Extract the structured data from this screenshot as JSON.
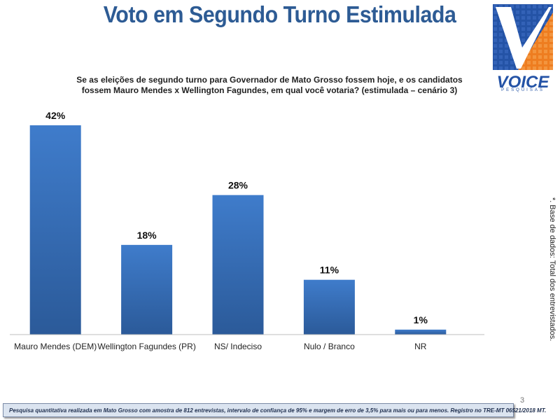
{
  "title": "Voto em Segundo Turno Estimulada",
  "logo": {
    "word": "VOICE",
    "sub": "PESQUISAS"
  },
  "question_line1": "Se as eleições de segundo turno para Governador de Mato Grosso fossem hoje, e os candidatos",
  "question_line2": "fossem Mauro Mendes x Wellington Fagundes, em qual você votaria? (estimulada – cenário 3)",
  "side_note": "*. Base de dados: Total dos entrevistados.",
  "page_number": "3",
  "footer": "Pesquisa quantitativa realizada em Mato Grosso com  amostra de 812 entrevistas, intervalo de confiança de 95% e margem de erro de 3,5% para mais ou para menos. Registro no TRE-MT  06521/2018 MT.",
  "colors": {
    "bar_top": "#3f7ccb",
    "bar_bottom": "#2b5a99",
    "title": "#2d5b94"
  },
  "chart_data": {
    "type": "bar",
    "categories": [
      "Mauro Mendes (DEM)",
      "Wellington Fagundes (PR)",
      "NS/ Indeciso",
      "Nulo / Branco",
      "NR"
    ],
    "values": [
      42,
      18,
      28,
      11,
      1
    ],
    "value_labels": [
      "42%",
      "18%",
      "28%",
      "11%",
      "1%"
    ],
    "unit": "%",
    "ylim": [
      0,
      42
    ],
    "grid": false,
    "legend": "none"
  }
}
